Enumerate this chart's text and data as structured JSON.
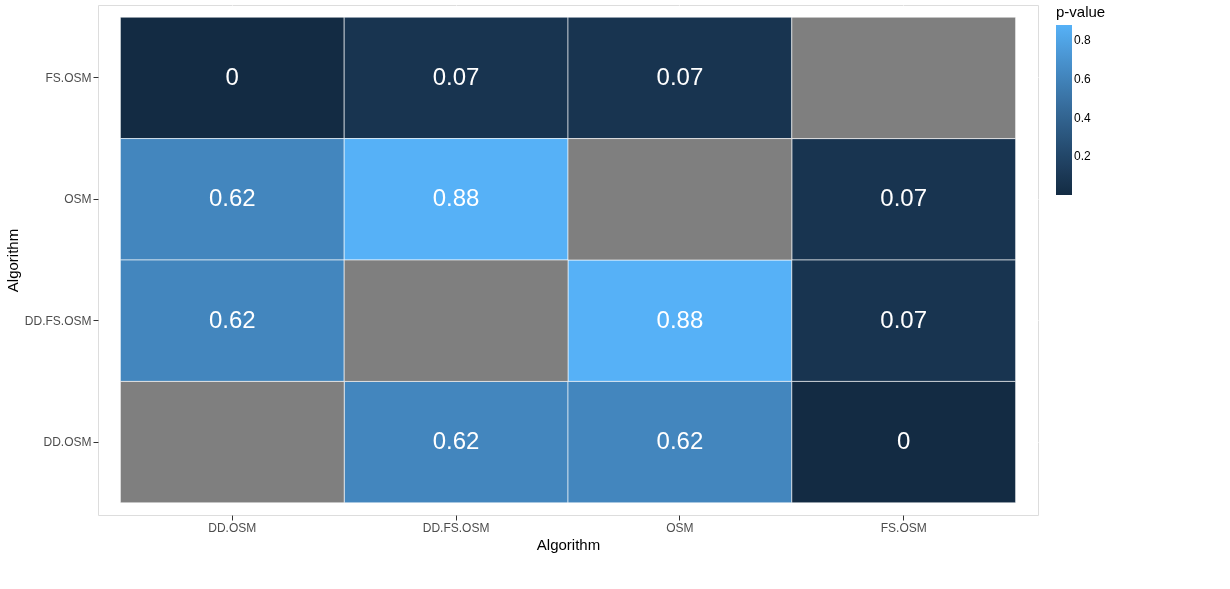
{
  "chart_data": {
    "type": "heatmap",
    "xlabel": "Algorithm",
    "ylabel": "Algorithm",
    "legend_title": "p-value",
    "categories": [
      "DD.OSM",
      "DD.FS.OSM",
      "OSM",
      "FS.OSM"
    ],
    "y_categories": [
      "FS.OSM",
      "OSM",
      "DD.FS.OSM",
      "DD.OSM"
    ],
    "cells": [
      [
        0,
        0.07,
        0.07,
        null
      ],
      [
        0.62,
        0.88,
        null,
        0.07
      ],
      [
        0.62,
        null,
        0.88,
        0.07
      ],
      [
        null,
        0.62,
        0.62,
        0
      ]
    ],
    "clim": [
      0,
      0.88
    ],
    "cticks": [
      0.2,
      0.4,
      0.6,
      0.8
    ],
    "colors": [
      "#132b43",
      "#56b1f7"
    ],
    "data_labels": true,
    "grid": true
  }
}
